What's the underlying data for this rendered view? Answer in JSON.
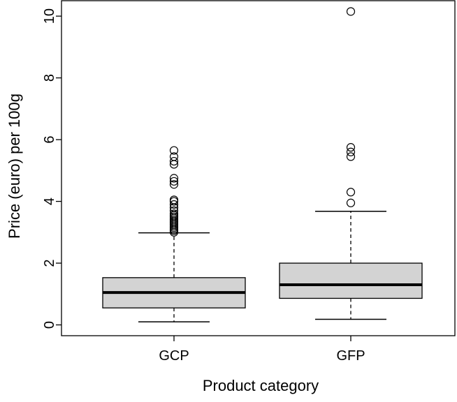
{
  "chart_data": {
    "type": "boxplot",
    "title": "",
    "xlabel": "Product category",
    "ylabel": "Price (euro) per 100g",
    "ylim": [
      -0.35,
      10.5
    ],
    "yticks": [
      0,
      2,
      4,
      6,
      8,
      10
    ],
    "ytick_labels": [
      "0",
      "2",
      "4",
      "6",
      "8",
      "10"
    ],
    "grid": false,
    "legend": "none",
    "categories": [
      "GCP",
      "GFP"
    ],
    "box_fill": "#d3d3d3",
    "line_color": "#000000",
    "boxes": [
      {
        "name": "GCP",
        "whisker_low": 0.1,
        "q1": 0.55,
        "median": 1.05,
        "q3": 1.53,
        "whisker_high": 2.98,
        "outliers": [
          3.0,
          3.05,
          3.1,
          3.15,
          3.2,
          3.25,
          3.3,
          3.35,
          3.4,
          3.45,
          3.5,
          3.55,
          3.6,
          3.7,
          3.8,
          3.9,
          4.0,
          4.05,
          4.55,
          4.65,
          4.75,
          5.2,
          5.3,
          5.45,
          5.65
        ]
      },
      {
        "name": "GFP",
        "whisker_low": 0.18,
        "q1": 0.86,
        "median": 1.3,
        "q3": 2.0,
        "whisker_high": 3.68,
        "outliers": [
          3.95,
          4.3,
          5.45,
          5.6,
          5.75,
          10.15
        ]
      }
    ]
  }
}
